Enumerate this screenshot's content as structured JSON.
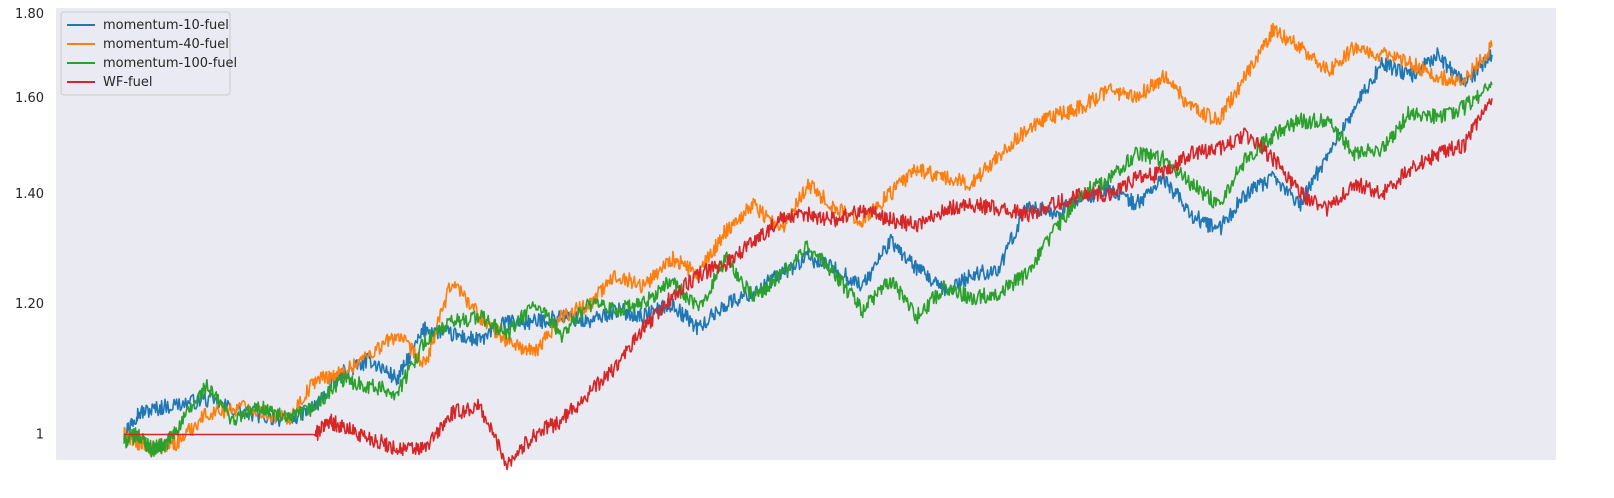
{
  "chart_data": {
    "type": "line",
    "title": "",
    "xlabel": "",
    "ylabel": "",
    "yscale": "log",
    "ylim": [
      0.965,
      1.815
    ],
    "y_ticks": [
      1,
      1.2,
      1.4,
      1.6,
      1.8
    ],
    "y_tick_labels": [
      "1",
      "1.20",
      "1.40",
      "1.60",
      "1.80"
    ],
    "x_ticks_shown": false,
    "grid": false,
    "legend_position": "upper-left",
    "background_color": "#eaeaf2",
    "series": [
      {
        "name": "momentum-10-fuel",
        "color": "#1f77b4",
        "x": [
          0,
          0.01,
          0.03,
          0.06,
          0.09,
          0.12,
          0.14,
          0.16,
          0.18,
          0.2,
          0.22,
          0.24,
          0.26,
          0.28,
          0.3,
          0.32,
          0.34,
          0.36,
          0.38,
          0.4,
          0.42,
          0.44,
          0.46,
          0.48,
          0.5,
          0.52,
          0.54,
          0.56,
          0.58,
          0.6,
          0.62,
          0.64,
          0.66,
          0.68,
          0.7,
          0.72,
          0.74,
          0.76,
          0.78,
          0.8,
          0.82,
          0.84,
          0.86,
          0.88,
          0.9,
          0.92,
          0.94,
          0.96,
          0.98,
          1.0
        ],
        "y": [
          1.0,
          1.03,
          1.04,
          1.05,
          1.03,
          1.02,
          1.04,
          1.09,
          1.11,
          1.08,
          1.16,
          1.15,
          1.14,
          1.17,
          1.17,
          1.18,
          1.17,
          1.19,
          1.18,
          1.2,
          1.16,
          1.2,
          1.22,
          1.25,
          1.28,
          1.26,
          1.23,
          1.31,
          1.26,
          1.22,
          1.25,
          1.26,
          1.38,
          1.36,
          1.39,
          1.41,
          1.38,
          1.43,
          1.36,
          1.33,
          1.4,
          1.43,
          1.38,
          1.48,
          1.58,
          1.68,
          1.65,
          1.7,
          1.63,
          1.7
        ]
      },
      {
        "name": "momentum-40-fuel",
        "color": "#ff7f0e",
        "x": [
          0,
          0.01,
          0.02,
          0.04,
          0.06,
          0.09,
          0.12,
          0.14,
          0.16,
          0.18,
          0.2,
          0.22,
          0.24,
          0.26,
          0.28,
          0.3,
          0.32,
          0.34,
          0.36,
          0.38,
          0.4,
          0.42,
          0.44,
          0.46,
          0.48,
          0.5,
          0.52,
          0.54,
          0.56,
          0.58,
          0.6,
          0.62,
          0.64,
          0.66,
          0.68,
          0.7,
          0.72,
          0.74,
          0.76,
          0.78,
          0.8,
          0.82,
          0.84,
          0.86,
          0.88,
          0.9,
          0.92,
          0.94,
          0.96,
          0.98,
          1.0
        ],
        "y": [
          1.0,
          0.99,
          0.98,
          0.99,
          1.03,
          1.04,
          1.02,
          1.08,
          1.09,
          1.12,
          1.15,
          1.1,
          1.24,
          1.18,
          1.14,
          1.12,
          1.18,
          1.2,
          1.25,
          1.23,
          1.28,
          1.25,
          1.33,
          1.38,
          1.33,
          1.42,
          1.37,
          1.35,
          1.4,
          1.45,
          1.43,
          1.42,
          1.48,
          1.53,
          1.56,
          1.58,
          1.62,
          1.6,
          1.65,
          1.58,
          1.55,
          1.65,
          1.76,
          1.72,
          1.66,
          1.72,
          1.7,
          1.68,
          1.65,
          1.64,
          1.72
        ]
      },
      {
        "name": "momentum-100-fuel",
        "color": "#2ca02c",
        "x": [
          0,
          0.01,
          0.02,
          0.03,
          0.04,
          0.06,
          0.08,
          0.1,
          0.12,
          0.14,
          0.16,
          0.18,
          0.2,
          0.22,
          0.24,
          0.26,
          0.28,
          0.3,
          0.32,
          0.34,
          0.36,
          0.38,
          0.4,
          0.42,
          0.44,
          0.46,
          0.48,
          0.5,
          0.52,
          0.54,
          0.56,
          0.58,
          0.6,
          0.62,
          0.64,
          0.66,
          0.68,
          0.7,
          0.72,
          0.74,
          0.76,
          0.78,
          0.8,
          0.82,
          0.84,
          0.86,
          0.88,
          0.9,
          0.92,
          0.94,
          0.96,
          0.98,
          1.0
        ],
        "y": [
          0.99,
          1.0,
          0.98,
          0.985,
          1.01,
          1.07,
          1.02,
          1.04,
          1.02,
          1.04,
          1.08,
          1.07,
          1.06,
          1.14,
          1.17,
          1.18,
          1.15,
          1.2,
          1.15,
          1.2,
          1.19,
          1.2,
          1.24,
          1.19,
          1.28,
          1.21,
          1.25,
          1.3,
          1.25,
          1.19,
          1.24,
          1.18,
          1.23,
          1.21,
          1.22,
          1.25,
          1.33,
          1.4,
          1.43,
          1.48,
          1.47,
          1.42,
          1.38,
          1.47,
          1.52,
          1.55,
          1.55,
          1.48,
          1.49,
          1.57,
          1.56,
          1.58,
          1.63
        ]
      },
      {
        "name": "WF-fuel",
        "color": "#d62728",
        "x": [
          0,
          0.05,
          0.1,
          0.14,
          0.15,
          0.16,
          0.18,
          0.2,
          0.22,
          0.24,
          0.26,
          0.28,
          0.3,
          0.32,
          0.34,
          0.36,
          0.38,
          0.4,
          0.42,
          0.44,
          0.46,
          0.48,
          0.5,
          0.52,
          0.54,
          0.56,
          0.58,
          0.6,
          0.62,
          0.64,
          0.66,
          0.68,
          0.7,
          0.72,
          0.74,
          0.76,
          0.78,
          0.8,
          0.82,
          0.84,
          0.86,
          0.88,
          0.9,
          0.92,
          0.94,
          0.96,
          0.98,
          1.0
        ],
        "y": [
          1.0,
          1.0,
          1.0,
          1.0,
          1.02,
          1.01,
          0.995,
          0.98,
          0.98,
          1.03,
          1.04,
          0.96,
          1.0,
          1.02,
          1.06,
          1.1,
          1.16,
          1.21,
          1.25,
          1.27,
          1.31,
          1.35,
          1.36,
          1.35,
          1.37,
          1.35,
          1.34,
          1.37,
          1.38,
          1.37,
          1.36,
          1.38,
          1.4,
          1.4,
          1.43,
          1.44,
          1.48,
          1.49,
          1.52,
          1.47,
          1.4,
          1.37,
          1.42,
          1.4,
          1.45,
          1.48,
          1.5,
          1.6
        ]
      }
    ]
  }
}
